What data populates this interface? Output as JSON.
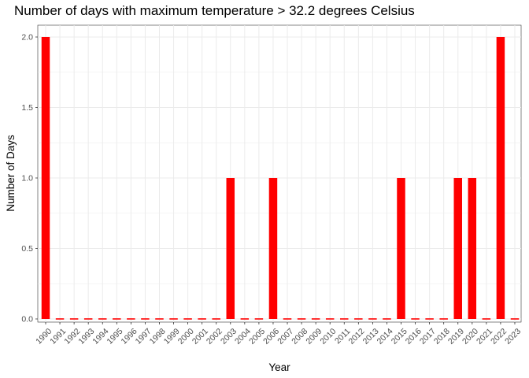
{
  "chart_data": {
    "type": "bar",
    "title": "Number of days with maximum temperature > 32.2 degrees Celsius",
    "xlabel": "Year",
    "ylabel": "Number of Days",
    "ylim": [
      0,
      2
    ],
    "yticks": [
      "0.0",
      "0.5",
      "1.0",
      "1.5",
      "2.0"
    ],
    "bar_color": "#ff0000",
    "grid": true,
    "categories": [
      "1990",
      "1991",
      "1992",
      "1993",
      "1994",
      "1995",
      "1996",
      "1997",
      "1998",
      "1999",
      "2000",
      "2001",
      "2002",
      "2003",
      "2004",
      "2005",
      "2006",
      "2007",
      "2008",
      "2009",
      "2010",
      "2011",
      "2012",
      "2013",
      "2014",
      "2015",
      "2016",
      "2017",
      "2018",
      "2019",
      "2020",
      "2021",
      "2022",
      "2023"
    ],
    "values": [
      2,
      0,
      0,
      0,
      0,
      0,
      0,
      0,
      0,
      0,
      0,
      0,
      0,
      1,
      0,
      0,
      1,
      0,
      0,
      0,
      0,
      0,
      0,
      0,
      0,
      1,
      0,
      0,
      0,
      1,
      1,
      0,
      2,
      0
    ]
  }
}
